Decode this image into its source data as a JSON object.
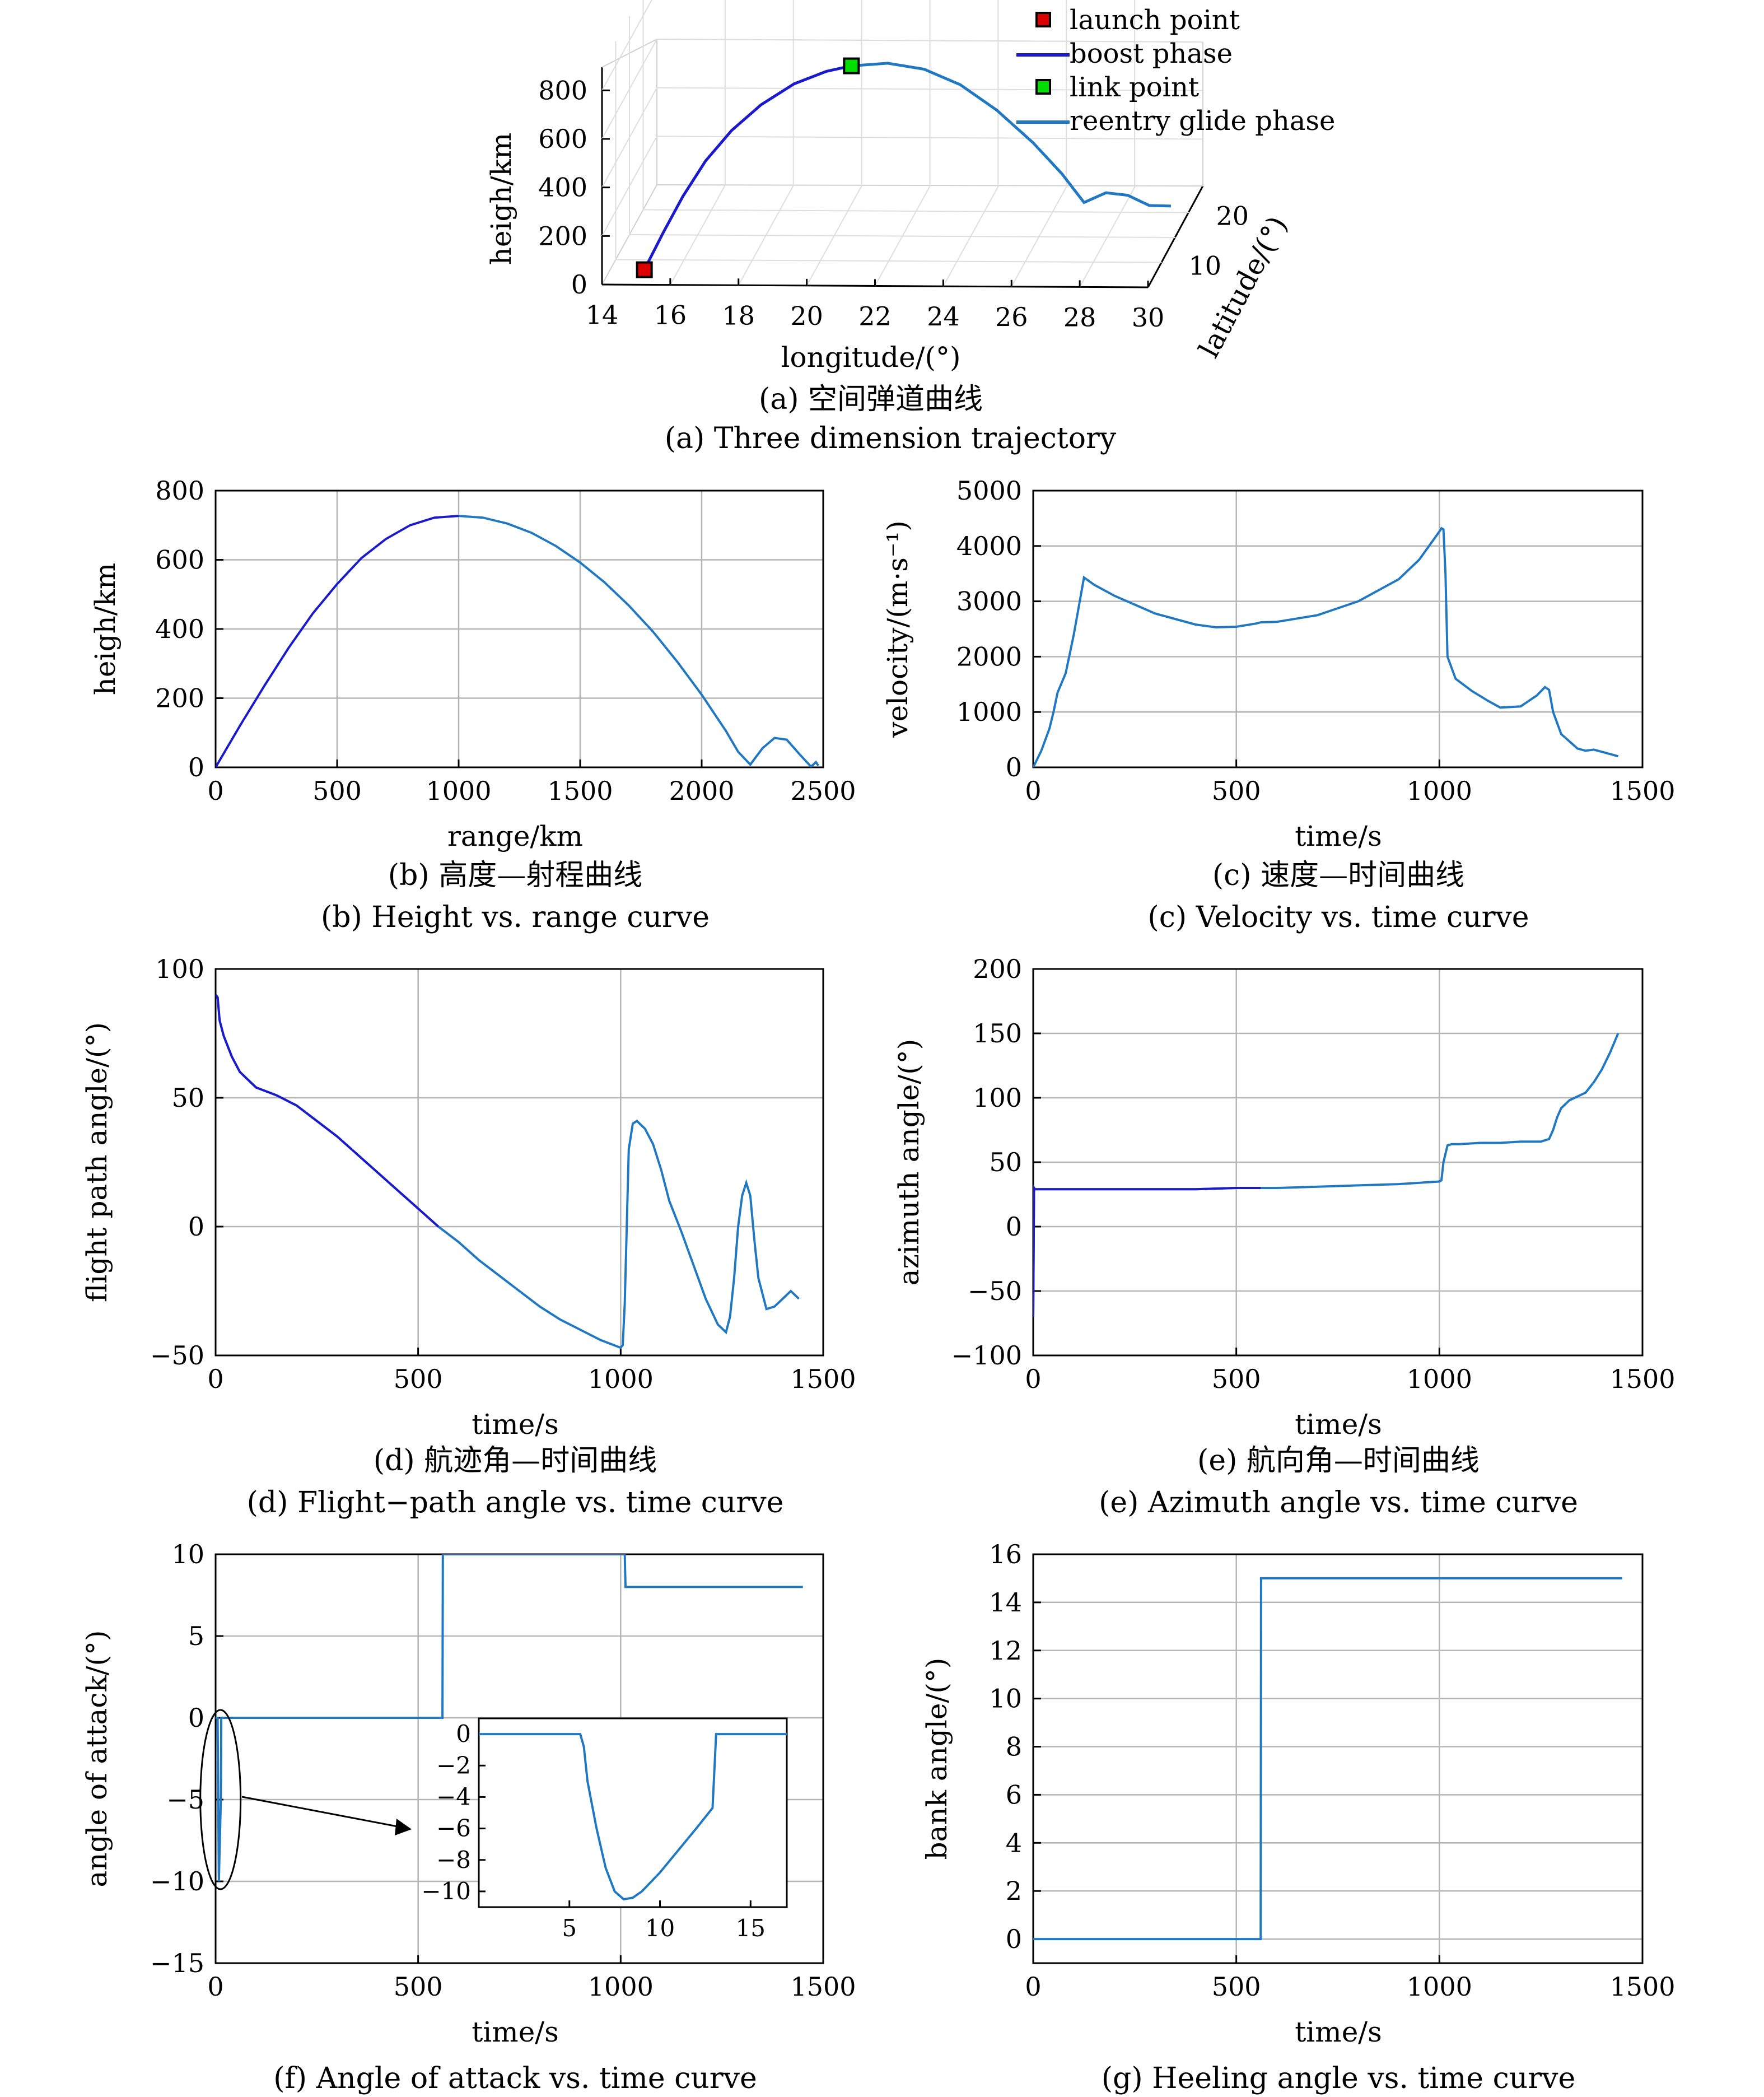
{
  "colors": {
    "boost": "#1a1acc",
    "glide": "#1f78c1",
    "launch": "#dd0000",
    "link": "#00dd00",
    "grid": "#b5b5b5",
    "axis": "#000000"
  },
  "panels": {
    "a": {
      "caption_cn": "(a) 空间弹道曲线",
      "caption_en": "(a) Three dimension trajectory",
      "xlabel": "longitude/(°)",
      "ylabel": "latitude/(°)",
      "zlabel": "heigh/km",
      "xticks": [
        "14",
        "16",
        "18",
        "20",
        "22",
        "24",
        "26",
        "28",
        "30"
      ],
      "yticks": [
        "10",
        "20"
      ],
      "zticks": [
        "0",
        "200",
        "400",
        "600",
        "800"
      ],
      "legend": [
        "launch point",
        "boost phase",
        "link point",
        "reentry glide phase"
      ]
    },
    "b": {
      "caption_cn": "(b) 高度—射程曲线",
      "caption_en": "(b) Height vs. range curve"
    },
    "c": {
      "caption_cn": "(c) 速度—时间曲线",
      "caption_en": "(c) Velocity vs. time curve"
    },
    "d": {
      "caption_cn": "(d) 航迹角—时间曲线",
      "caption_en": "(d) Flight−path angle vs. time curve"
    },
    "e": {
      "caption_cn": "(e) 航向角—时间曲线",
      "caption_en": "(e) Azimuth angle vs. time curve"
    },
    "f": {
      "caption_en": "(f) Angle of attack vs. time curve"
    },
    "g": {
      "caption_en": "(g) Heeling angle vs. time curve"
    }
  },
  "chart_data": [
    {
      "id": "a",
      "type": "line",
      "title": "(a) Three dimension trajectory",
      "xlabel": "longitude/(°)",
      "ylabel": "latitude/(°)",
      "zlabel": "heigh/km",
      "xlim": [
        14,
        30
      ],
      "ylim": [
        5,
        25
      ],
      "zlim": [
        0,
        900
      ],
      "series": [
        {
          "name": "boost phase",
          "x": [
            15,
            15.5,
            16,
            16.6,
            17.3,
            18.1,
            19,
            19.9,
            20.6
          ],
          "y": [
            8,
            8.8,
            9.6,
            10.4,
            11.2,
            12,
            12.8,
            13.4,
            13.8
          ],
          "z": [
            0,
            140,
            270,
            400,
            510,
            600,
            670,
            710,
            725
          ]
        },
        {
          "name": "reentry glide phase",
          "x": [
            20.6,
            21.6,
            22.6,
            23.6,
            24.6,
            25.6,
            26.4,
            27,
            27.6,
            28.2,
            28.8,
            29.4
          ],
          "y": [
            13.8,
            14.6,
            15.4,
            16.2,
            17,
            17.8,
            18.4,
            19,
            19.5,
            20,
            20.4,
            20.8
          ],
          "z": [
            725,
            720,
            680,
            600,
            480,
            330,
            190,
            60,
            90,
            70,
            20,
            10
          ]
        }
      ],
      "points": [
        {
          "name": "launch point",
          "x": 15,
          "y": 8,
          "z": 0
        },
        {
          "name": "link point",
          "x": 20.6,
          "y": 13.8,
          "z": 725
        }
      ],
      "legend": [
        "launch point",
        "boost phase",
        "link point",
        "reentry glide phase"
      ]
    },
    {
      "id": "b",
      "type": "line",
      "title": "(b) Height vs. range curve",
      "xlabel": "range/km",
      "ylabel": "heigh/km",
      "xlim": [
        0,
        2500
      ],
      "ylim": [
        0,
        800
      ],
      "xticks": [
        0,
        500,
        1000,
        1500,
        2000,
        2500
      ],
      "yticks": [
        0,
        200,
        400,
        600,
        800
      ],
      "grid": true,
      "series": [
        {
          "name": "boost phase",
          "x": [
            0,
            100,
            200,
            300,
            400,
            500,
            600,
            700,
            800,
            900,
            1000
          ],
          "y": [
            0,
            120,
            235,
            345,
            445,
            530,
            605,
            660,
            700,
            722,
            727
          ]
        },
        {
          "name": "reentry glide phase",
          "x": [
            1000,
            1100,
            1200,
            1300,
            1400,
            1500,
            1600,
            1700,
            1800,
            1900,
            2000,
            2100,
            2150,
            2200,
            2250,
            2300,
            2350,
            2400,
            2450,
            2470,
            2480
          ],
          "y": [
            727,
            722,
            705,
            678,
            640,
            592,
            535,
            468,
            392,
            305,
            210,
            105,
            45,
            8,
            55,
            85,
            80,
            40,
            2,
            15,
            5
          ]
        }
      ]
    },
    {
      "id": "c",
      "type": "line",
      "title": "(c) Velocity vs. time curve",
      "xlabel": "time/s",
      "ylabel": "velocity/(m·s⁻¹)",
      "xlim": [
        0,
        1500
      ],
      "ylim": [
        0,
        5000
      ],
      "xticks": [
        0,
        500,
        1000,
        1500
      ],
      "yticks": [
        0,
        1000,
        2000,
        3000,
        4000,
        5000
      ],
      "grid": true,
      "series": [
        {
          "name": "velocity",
          "x": [
            0,
            20,
            40,
            50,
            60,
            80,
            100,
            125,
            150,
            200,
            300,
            400,
            450,
            500,
            550,
            560,
            600,
            700,
            800,
            900,
            950,
            1000,
            1005,
            1010,
            1015,
            1020,
            1040,
            1080,
            1120,
            1150,
            1200,
            1240,
            1260,
            1270,
            1280,
            1300,
            1340,
            1360,
            1380,
            1400,
            1440
          ],
          "y": [
            0,
            300,
            700,
            1000,
            1350,
            1700,
            2400,
            3430,
            3300,
            3100,
            2780,
            2580,
            2530,
            2540,
            2600,
            2620,
            2630,
            2750,
            3000,
            3400,
            3750,
            4260,
            4320,
            4300,
            3500,
            2000,
            1600,
            1380,
            1200,
            1080,
            1100,
            1300,
            1450,
            1400,
            1000,
            600,
            340,
            300,
            320,
            280,
            200
          ]
        }
      ]
    },
    {
      "id": "d",
      "type": "line",
      "title": "(d) Flight−path angle vs. time curve",
      "xlabel": "time/s",
      "ylabel": "flight path angle/(°)",
      "xlim": [
        0,
        1500
      ],
      "ylim": [
        -50,
        100
      ],
      "xticks": [
        0,
        500,
        1000,
        1500
      ],
      "yticks": [
        -50,
        0,
        50,
        100
      ],
      "grid": true,
      "series": [
        {
          "name": "flight path angle",
          "x": [
            0,
            5,
            10,
            20,
            40,
            60,
            80,
            100,
            150,
            200,
            250,
            300,
            350,
            400,
            450,
            500,
            550,
            600,
            650,
            700,
            750,
            800,
            850,
            900,
            950,
            1000,
            1005,
            1010,
            1015,
            1020,
            1030,
            1040,
            1060,
            1080,
            1100,
            1120,
            1150,
            1180,
            1210,
            1240,
            1260,
            1270,
            1280,
            1290,
            1300,
            1310,
            1320,
            1330,
            1340,
            1360,
            1380,
            1400,
            1420,
            1440
          ],
          "y": [
            90,
            89,
            80,
            74,
            66,
            60,
            57,
            54,
            51,
            47,
            41,
            35,
            28,
            21,
            14,
            7,
            0,
            -6,
            -13,
            -19,
            -25,
            -31,
            -36,
            -40,
            -44,
            -47,
            -46,
            -30,
            0,
            30,
            40,
            41,
            38,
            32,
            22,
            10,
            -2,
            -15,
            -28,
            -38,
            -41,
            -35,
            -20,
            0,
            12,
            17,
            12,
            -5,
            -20,
            -32,
            -31,
            -28,
            -25,
            -28
          ]
        }
      ]
    },
    {
      "id": "e",
      "type": "line",
      "title": "(e) Azimuth angle vs. time curve",
      "xlabel": "time/s",
      "ylabel": "azimuth angle/(°)",
      "xlim": [
        0,
        1500
      ],
      "ylim": [
        -100,
        200
      ],
      "xticks": [
        0,
        500,
        1000,
        1500
      ],
      "yticks": [
        -100,
        -50,
        0,
        50,
        100,
        150,
        200
      ],
      "grid": true,
      "series": [
        {
          "name": "azimuth angle",
          "x": [
            0,
            2,
            4,
            6,
            10,
            20,
            50,
            100,
            200,
            300,
            400,
            500,
            560,
            600,
            700,
            800,
            900,
            1000,
            1005,
            1010,
            1020,
            1030,
            1050,
            1100,
            1150,
            1200,
            1250,
            1270,
            1280,
            1290,
            1300,
            1320,
            1340,
            1360,
            1380,
            1400,
            1420,
            1440
          ],
          "y": [
            -70,
            30,
            29,
            29,
            29,
            29,
            29,
            29,
            29,
            29,
            29,
            30,
            30,
            30,
            31,
            32,
            33,
            35,
            36,
            50,
            63,
            64,
            64,
            65,
            65,
            66,
            66,
            68,
            75,
            85,
            92,
            98,
            101,
            104,
            112,
            122,
            135,
            150
          ]
        }
      ]
    },
    {
      "id": "f",
      "type": "line",
      "title": "(f) Angle of attack vs. time curve",
      "xlabel": "time/s",
      "ylabel": "angle of attack/(°)",
      "xlim": [
        0,
        1500
      ],
      "ylim": [
        -15,
        10
      ],
      "xticks": [
        0,
        500,
        1000,
        1500
      ],
      "yticks": [
        -15,
        -10,
        -5,
        0,
        5,
        10
      ],
      "grid": true,
      "series": [
        {
          "name": "angle of attack",
          "x": [
            0,
            5,
            7,
            8,
            10,
            13,
            14,
            560,
            561,
            1010,
            1012,
            1020,
            1450
          ],
          "y": [
            0,
            0,
            -7,
            -10,
            -8,
            -5,
            0,
            0,
            10,
            10,
            8,
            8,
            8
          ]
        }
      ],
      "inset": {
        "xlim": [
          0,
          17
        ],
        "ylim": [
          -11,
          1
        ],
        "xticks": [
          5,
          10,
          15
        ],
        "yticks": [
          0,
          -2,
          -4,
          -6,
          -8,
          -10
        ],
        "x": [
          0,
          5.6,
          5.8,
          6,
          6.5,
          7,
          7.5,
          8,
          8.5,
          9,
          10,
          11,
          12,
          12.9,
          13.1,
          17
        ],
        "y": [
          0,
          0,
          -0.8,
          -3,
          -6,
          -8.5,
          -10,
          -10.5,
          -10.4,
          -10,
          -8.8,
          -7.4,
          -6,
          -4.7,
          0,
          0
        ]
      }
    },
    {
      "id": "g",
      "type": "line",
      "title": "(g) Heeling angle vs. time curve",
      "xlabel": "time/s",
      "ylabel": "bank angle/(°)",
      "xlim": [
        0,
        1500
      ],
      "ylim": [
        -1,
        16
      ],
      "xticks": [
        0,
        500,
        1000,
        1500
      ],
      "yticks": [
        0,
        2,
        4,
        6,
        8,
        10,
        12,
        14,
        16
      ],
      "grid": true,
      "series": [
        {
          "name": "bank angle",
          "x": [
            0,
            560,
            561,
            1450
          ],
          "y": [
            0,
            0,
            15,
            15
          ]
        }
      ]
    }
  ]
}
